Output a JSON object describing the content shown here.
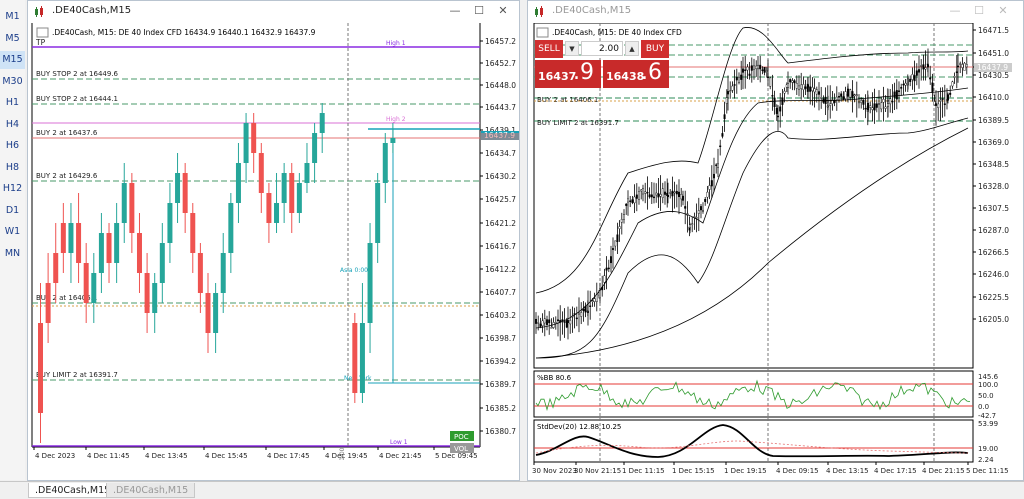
{
  "timeframes": [
    "M1",
    "M5",
    "M15",
    "M30",
    "H1",
    "H4",
    "H6",
    "H8",
    "H12",
    "D1",
    "W1",
    "MN"
  ],
  "active_timeframe": "M15",
  "left_window": {
    "title": ".DE40Cash,M15",
    "chart_label": ".DE40Cash, M15:  DE 40 Index CFD   16434.9 16440.1 16432.9 16437.9",
    "tp_label": "TP",
    "high_label": "High 1",
    "high2_label": "High 2",
    "low_label": "Low 1",
    "orders": [
      "BUY STOP 2 at 16449.6",
      "BUY STOP 2 at 16444.1",
      "BUY 2 at 16437.6",
      "BUY 2 at 16429.6",
      "BUY 2 at 16406.1",
      "BUY LIMIT 2 at 16391.7"
    ],
    "price_axis": [
      "16457.2",
      "16452.7",
      "16448.0",
      "16443.7",
      "16439.1",
      "16434.7",
      "16430.2",
      "16425.7",
      "16421.2",
      "16416.7",
      "16412.2",
      "16407.7",
      "16403.2",
      "16398.7",
      "16394.2",
      "16389.7",
      "16385.2",
      "16380.7"
    ],
    "current_price": "16437.9",
    "current_price2": "16439.1",
    "time_axis": [
      "4 Dec 2023",
      "4 Dec 11:45",
      "4 Dec 13:45",
      "4 Dec 15:45",
      "4 Dec 17:45",
      "4 Dec 19:45",
      "4 Dec 21:45",
      "5 Dec 09:45"
    ],
    "small_labels": [
      "Asia 0:00",
      "New York",
      "0:00"
    ],
    "poc": "POC",
    "vol": "VOL"
  },
  "right_window": {
    "title": ".DE40Cash,M15",
    "chart_label": ".DE40Cash, M15:  DE 40 Index CFD",
    "sell": "SELL",
    "buy": "BUY",
    "lot": "2.00",
    "sell_price_small": "16437",
    "sell_price_big": ".9",
    "buy_price_small": "16438",
    "buy_price_big": ".6",
    "orders": [
      "BUY 2 at 16406.1",
      "BUY LIMIT 2 at 16391.7"
    ],
    "price_axis": [
      "16471.5",
      "16451.0",
      "16437.9",
      "16430.5",
      "16410.0",
      "16389.5",
      "16369.0",
      "16348.5",
      "16328.0",
      "16307.5",
      "16287.0",
      "16266.5",
      "16246.0",
      "16225.5",
      "16205.0"
    ],
    "bb_label": "%BB 80.6",
    "bb_axis": [
      "145.6",
      "100.0",
      "50.0",
      "0.0",
      "-42.7"
    ],
    "std_label": "StdDev(20) 12.88 10.25",
    "std_axis": [
      "53.99",
      "19.00",
      "2.24"
    ],
    "time_axis": [
      "30 Nov 2023",
      "30 Nov 21:15",
      "1 Dec 11:15",
      "1 Dec 15:15",
      "1 Dec 19:15",
      "4 Dec 09:15",
      "4 Dec 13:15",
      "4 Dec 17:15",
      "4 Dec 21:15",
      "5 Dec 11:15"
    ]
  },
  "tabs": [
    ".DE40Cash,M15",
    ".DE40Cash,M15"
  ],
  "colors": {
    "bull": "#26a69a",
    "bear": "#ef5350",
    "order_line": "#2e8b57",
    "high": "#9932cc",
    "current": "#17a2b8",
    "panel_red": "#c82a2a"
  }
}
